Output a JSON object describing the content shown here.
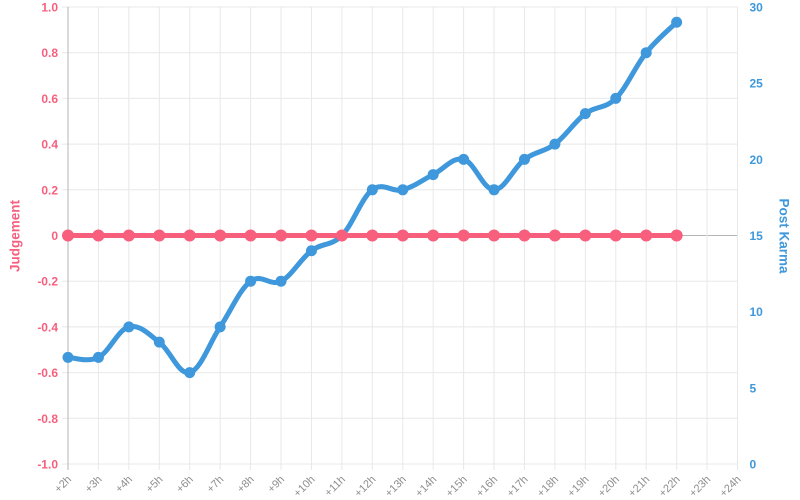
{
  "chart_data": {
    "type": "line",
    "title": "",
    "legend": {
      "visible": false
    },
    "grid": {
      "grid_on": true,
      "grid_line_color": "#e8e8e8",
      "axis_line_color": "#b5b5b5"
    },
    "x_axis": {
      "tick_labels": [
        "+2h",
        "+3h",
        "+4h",
        "+5h",
        "+6h",
        "+7h",
        "+8h",
        "+9h",
        "+10h",
        "+11h",
        "+12h",
        "+13h",
        "+14h",
        "+15h",
        "+16h",
        "+17h",
        "+18h",
        "+19h",
        "+20h",
        "+21h",
        "+22h",
        "+23h",
        "+24h"
      ],
      "tick_color": "#8e8e8e",
      "label_rotation_deg": -45
    },
    "left_axis": {
      "title": "Judgement",
      "color": "#f75f7d",
      "range": [
        -1.0,
        1.0
      ],
      "tick_step": 0.2,
      "tick_labels": [
        "1.0",
        "0.8",
        "0.6",
        "0.4",
        "0.2",
        "0",
        "-0.2",
        "-0.4",
        "-0.6",
        "-0.8",
        "-1.0"
      ]
    },
    "right_axis": {
      "title": "Post Karma",
      "color": "#3e98db",
      "range": [
        0,
        30
      ],
      "tick_step": 5,
      "tick_labels": [
        "30",
        "25",
        "20",
        "15",
        "10",
        "5",
        "0"
      ]
    },
    "series": [
      {
        "name": "Post Karma",
        "axis": "right",
        "color": "#3e98db",
        "x": [
          "+2h",
          "+3h",
          "+4h",
          "+5h",
          "+6h",
          "+7h",
          "+8h",
          "+9h",
          "+10h",
          "+11h",
          "+12h",
          "+13h",
          "+14h",
          "+15h",
          "+16h",
          "+17h",
          "+18h",
          "+19h",
          "+20h",
          "+21h",
          "+22h"
        ],
        "values": [
          7,
          7,
          9,
          8,
          6,
          9,
          12,
          12,
          14,
          15,
          18,
          18,
          19,
          20,
          18,
          20,
          21,
          23,
          24,
          27,
          29
        ]
      },
      {
        "name": "Judgement",
        "axis": "left",
        "color": "#f75f7d",
        "x": [
          "+2h",
          "+3h",
          "+4h",
          "+5h",
          "+6h",
          "+7h",
          "+8h",
          "+9h",
          "+10h",
          "+11h",
          "+12h",
          "+13h",
          "+14h",
          "+15h",
          "+16h",
          "+17h",
          "+18h",
          "+19h",
          "+20h",
          "+21h",
          "+22h"
        ],
        "values": [
          0,
          0,
          0,
          0,
          0,
          0,
          0,
          0,
          0,
          0,
          0,
          0,
          0,
          0,
          0,
          0,
          0,
          0,
          0,
          0,
          0
        ]
      }
    ]
  }
}
